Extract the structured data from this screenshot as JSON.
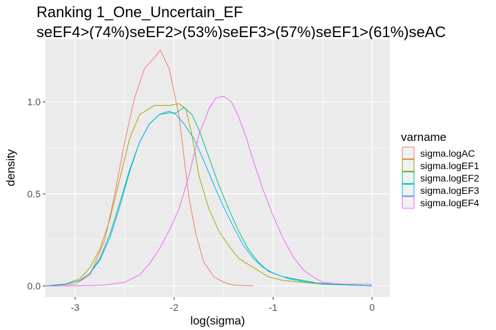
{
  "chart_data": {
    "type": "line",
    "title": "Ranking 1_One_Uncertain_EF",
    "subtitle": "seEF4>(74%)seEF2>(53%)seEF3>(57%)seEF1>(61%)seAC",
    "xlabel": "log(sigma)",
    "ylabel": "density",
    "xlim": [
      -3.3,
      0.18
    ],
    "ylim": [
      -0.06,
      1.34
    ],
    "x_ticks": [
      -3,
      -2,
      -1,
      0
    ],
    "x_tick_labels": [
      "-3",
      "-2",
      "-1",
      "0"
    ],
    "y_ticks": [
      0,
      0.5,
      1
    ],
    "y_tick_labels": [
      "0.0",
      "0.5",
      "1.0"
    ],
    "grid": true,
    "legend": {
      "title": "varname",
      "position": "right"
    },
    "series": [
      {
        "name": "sigma.logAC",
        "color": "#F8766D",
        "points": [
          [
            -3.3,
            0
          ],
          [
            -3.0,
            0.01
          ],
          [
            -2.85,
            0.06
          ],
          [
            -2.7,
            0.25
          ],
          [
            -2.6,
            0.5
          ],
          [
            -2.5,
            0.78
          ],
          [
            -2.4,
            1.02
          ],
          [
            -2.3,
            1.18
          ],
          [
            -2.2,
            1.24
          ],
          [
            -2.14,
            1.28
          ],
          [
            -2.05,
            1.18
          ],
          [
            -1.95,
            0.92
          ],
          [
            -1.9,
            0.7
          ],
          [
            -1.85,
            0.48
          ],
          [
            -1.78,
            0.28
          ],
          [
            -1.7,
            0.13
          ],
          [
            -1.6,
            0.05
          ],
          [
            -1.5,
            0.02
          ],
          [
            -1.4,
            0.005
          ],
          [
            -1.2,
            0
          ]
        ]
      },
      {
        "name": "sigma.logEF1",
        "color": "#A3A500",
        "points": [
          [
            -3.3,
            0
          ],
          [
            -3.1,
            0.01
          ],
          [
            -2.95,
            0.04
          ],
          [
            -2.85,
            0.1
          ],
          [
            -2.75,
            0.2
          ],
          [
            -2.65,
            0.36
          ],
          [
            -2.55,
            0.58
          ],
          [
            -2.45,
            0.8
          ],
          [
            -2.35,
            0.93
          ],
          [
            -2.2,
            0.98
          ],
          [
            -2.05,
            0.98
          ],
          [
            -1.95,
            0.99
          ],
          [
            -1.88,
            0.96
          ],
          [
            -1.82,
            0.82
          ],
          [
            -1.75,
            0.6
          ],
          [
            -1.65,
            0.42
          ],
          [
            -1.55,
            0.3
          ],
          [
            -1.45,
            0.22
          ],
          [
            -1.35,
            0.15
          ],
          [
            -1.2,
            0.1
          ],
          [
            -1.05,
            0.05
          ],
          [
            -0.9,
            0.03
          ],
          [
            -0.7,
            0.02
          ],
          [
            -0.5,
            0.01
          ],
          [
            0,
            0
          ]
        ]
      },
      {
        "name": "sigma.logEF2",
        "color": "#00BF7D",
        "points": [
          [
            -3.3,
            0
          ],
          [
            -3.1,
            0.01
          ],
          [
            -2.95,
            0.03
          ],
          [
            -2.85,
            0.07
          ],
          [
            -2.75,
            0.15
          ],
          [
            -2.65,
            0.28
          ],
          [
            -2.55,
            0.45
          ],
          [
            -2.45,
            0.63
          ],
          [
            -2.35,
            0.78
          ],
          [
            -2.25,
            0.88
          ],
          [
            -2.15,
            0.93
          ],
          [
            -2.05,
            0.94
          ],
          [
            -1.98,
            0.94
          ],
          [
            -1.9,
            0.97
          ],
          [
            -1.82,
            0.93
          ],
          [
            -1.75,
            0.85
          ],
          [
            -1.65,
            0.7
          ],
          [
            -1.55,
            0.55
          ],
          [
            -1.45,
            0.42
          ],
          [
            -1.35,
            0.3
          ],
          [
            -1.25,
            0.2
          ],
          [
            -1.15,
            0.13
          ],
          [
            -1.05,
            0.08
          ],
          [
            -0.9,
            0.05
          ],
          [
            -0.7,
            0.03
          ],
          [
            -0.5,
            0.01
          ],
          [
            0,
            0
          ]
        ]
      },
      {
        "name": "sigma.logEF3",
        "color": "#00B0F6",
        "points": [
          [
            -3.3,
            0
          ],
          [
            -3.1,
            0.01
          ],
          [
            -2.95,
            0.03
          ],
          [
            -2.85,
            0.07
          ],
          [
            -2.75,
            0.14
          ],
          [
            -2.65,
            0.26
          ],
          [
            -2.55,
            0.43
          ],
          [
            -2.45,
            0.62
          ],
          [
            -2.35,
            0.78
          ],
          [
            -2.25,
            0.88
          ],
          [
            -2.15,
            0.93
          ],
          [
            -2.05,
            0.95
          ],
          [
            -1.98,
            0.93
          ],
          [
            -1.9,
            0.88
          ],
          [
            -1.8,
            0.8
          ],
          [
            -1.7,
            0.68
          ],
          [
            -1.6,
            0.55
          ],
          [
            -1.5,
            0.43
          ],
          [
            -1.4,
            0.32
          ],
          [
            -1.3,
            0.22
          ],
          [
            -1.2,
            0.15
          ],
          [
            -1.1,
            0.1
          ],
          [
            -1.0,
            0.07
          ],
          [
            -0.85,
            0.04
          ],
          [
            -0.65,
            0.02
          ],
          [
            -0.4,
            0.01
          ],
          [
            0,
            0
          ]
        ]
      },
      {
        "name": "sigma.logEF4",
        "color": "#E76BF3",
        "points": [
          [
            -3.3,
            0
          ],
          [
            -3.0,
            0
          ],
          [
            -2.7,
            0.005
          ],
          [
            -2.5,
            0.02
          ],
          [
            -2.35,
            0.06
          ],
          [
            -2.25,
            0.12
          ],
          [
            -2.15,
            0.2
          ],
          [
            -2.05,
            0.3
          ],
          [
            -1.95,
            0.42
          ],
          [
            -1.85,
            0.6
          ],
          [
            -1.75,
            0.82
          ],
          [
            -1.65,
            0.96
          ],
          [
            -1.58,
            1.02
          ],
          [
            -1.5,
            1.03
          ],
          [
            -1.42,
            1.0
          ],
          [
            -1.35,
            0.92
          ],
          [
            -1.28,
            0.82
          ],
          [
            -1.2,
            0.68
          ],
          [
            -1.1,
            0.52
          ],
          [
            -1.0,
            0.38
          ],
          [
            -0.9,
            0.26
          ],
          [
            -0.8,
            0.16
          ],
          [
            -0.7,
            0.09
          ],
          [
            -0.6,
            0.05
          ],
          [
            -0.5,
            0.02
          ],
          [
            -0.3,
            0.01
          ],
          [
            0,
            0.01
          ]
        ]
      }
    ]
  }
}
